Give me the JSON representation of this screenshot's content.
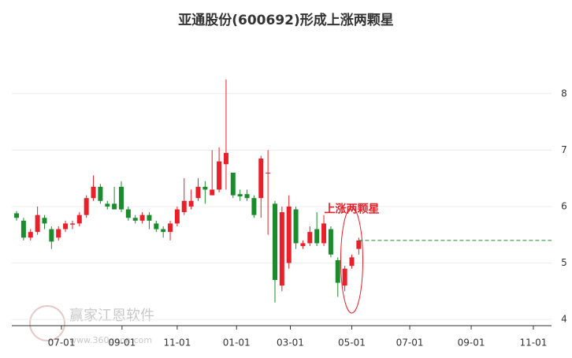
{
  "chart_data": {
    "type": "candlestick",
    "title": "亚通股份(600692)形成上涨两颗星",
    "annotation": "上涨两颗星",
    "watermark": "赢家江恩软件",
    "watermark_url": "www.360gann.com",
    "x": [
      0,
      1,
      2,
      3,
      4,
      5,
      6,
      7,
      8,
      9,
      10,
      11,
      12,
      13,
      14,
      15,
      16,
      17,
      18,
      19,
      20,
      21,
      22,
      23,
      24,
      25,
      26,
      27,
      28,
      29,
      30,
      31,
      32,
      33,
      34,
      35,
      36,
      37,
      38,
      39,
      40,
      41,
      42,
      43,
      44,
      45,
      46,
      47,
      48,
      49
    ],
    "open": [
      5.88,
      5.75,
      5.45,
      5.55,
      5.8,
      5.6,
      5.45,
      5.6,
      5.68,
      5.7,
      5.85,
      6.15,
      6.35,
      6.05,
      6.05,
      6.35,
      5.95,
      5.8,
      5.75,
      5.85,
      5.7,
      5.6,
      5.55,
      5.7,
      5.9,
      6.0,
      6.15,
      6.35,
      6.2,
      6.3,
      6.75,
      6.6,
      6.22,
      6.22,
      6.15,
      6.15,
      6.6,
      6.05,
      4.6,
      5.0,
      5.95,
      5.3,
      5.35,
      5.6,
      5.35,
      5.6,
      5.05,
      4.6,
      4.95,
      5.25
    ],
    "high": [
      5.92,
      5.8,
      5.6,
      6.0,
      5.85,
      5.65,
      5.65,
      5.75,
      5.75,
      5.9,
      6.2,
      6.55,
      6.4,
      6.1,
      6.35,
      6.45,
      6.0,
      5.85,
      5.9,
      5.9,
      5.75,
      5.65,
      5.75,
      6.0,
      6.5,
      6.3,
      6.5,
      6.45,
      7.0,
      7.05,
      8.25,
      6.6,
      6.3,
      6.3,
      6.2,
      6.9,
      7.0,
      6.1,
      6.0,
      6.2,
      6.0,
      5.4,
      5.65,
      5.9,
      5.85,
      5.65,
      5.1,
      4.95,
      5.15,
      5.45
    ],
    "low": [
      5.75,
      5.4,
      5.4,
      5.5,
      5.6,
      5.25,
      5.4,
      5.55,
      5.6,
      5.65,
      5.8,
      6.1,
      6.05,
      5.95,
      5.95,
      5.9,
      5.75,
      5.7,
      5.7,
      5.6,
      5.55,
      5.45,
      5.4,
      5.65,
      5.85,
      5.95,
      6.1,
      6.05,
      6.2,
      6.25,
      6.3,
      6.15,
      6.1,
      6.1,
      5.8,
      5.8,
      5.5,
      4.3,
      4.5,
      4.9,
      5.25,
      5.25,
      5.3,
      5.3,
      5.3,
      5.1,
      4.4,
      4.5,
      4.9,
      5.15
    ],
    "close": [
      5.8,
      5.45,
      5.55,
      5.85,
      5.7,
      5.38,
      5.6,
      5.7,
      5.7,
      5.85,
      6.15,
      6.35,
      6.1,
      6.0,
      5.95,
      5.95,
      5.8,
      5.75,
      5.85,
      5.75,
      5.6,
      5.55,
      5.7,
      5.95,
      6.1,
      6.1,
      6.35,
      6.3,
      6.3,
      6.8,
      6.95,
      6.2,
      6.18,
      6.15,
      5.85,
      6.85,
      6.6,
      4.7,
      5.9,
      6.0,
      5.35,
      5.35,
      5.55,
      5.35,
      5.7,
      5.15,
      4.65,
      4.9,
      5.1,
      5.4
    ],
    "up_color": "#e8202a",
    "down_color": "#1a8c2c",
    "hline": 5.4,
    "hline_color": "#1a8c2c",
    "xlim": [
      -0.68,
      76.6
    ],
    "xticks": [
      {
        "value": 6.43,
        "label": "07-01"
      },
      {
        "value": 15.1,
        "label": "09-01"
      },
      {
        "value": 23.0,
        "label": "11-01"
      },
      {
        "value": 31.5,
        "label": "01-01"
      },
      {
        "value": 39.2,
        "label": "03-01"
      },
      {
        "value": 48.0,
        "label": "05-01"
      },
      {
        "value": 56.3,
        "label": "07-01"
      },
      {
        "value": 65.1,
        "label": "09-01"
      },
      {
        "value": 74.0,
        "label": "11-01"
      }
    ],
    "ylim": [
      3.89,
      9.1
    ],
    "yticks": [
      4,
      5,
      6,
      7,
      8
    ],
    "grid": true
  }
}
